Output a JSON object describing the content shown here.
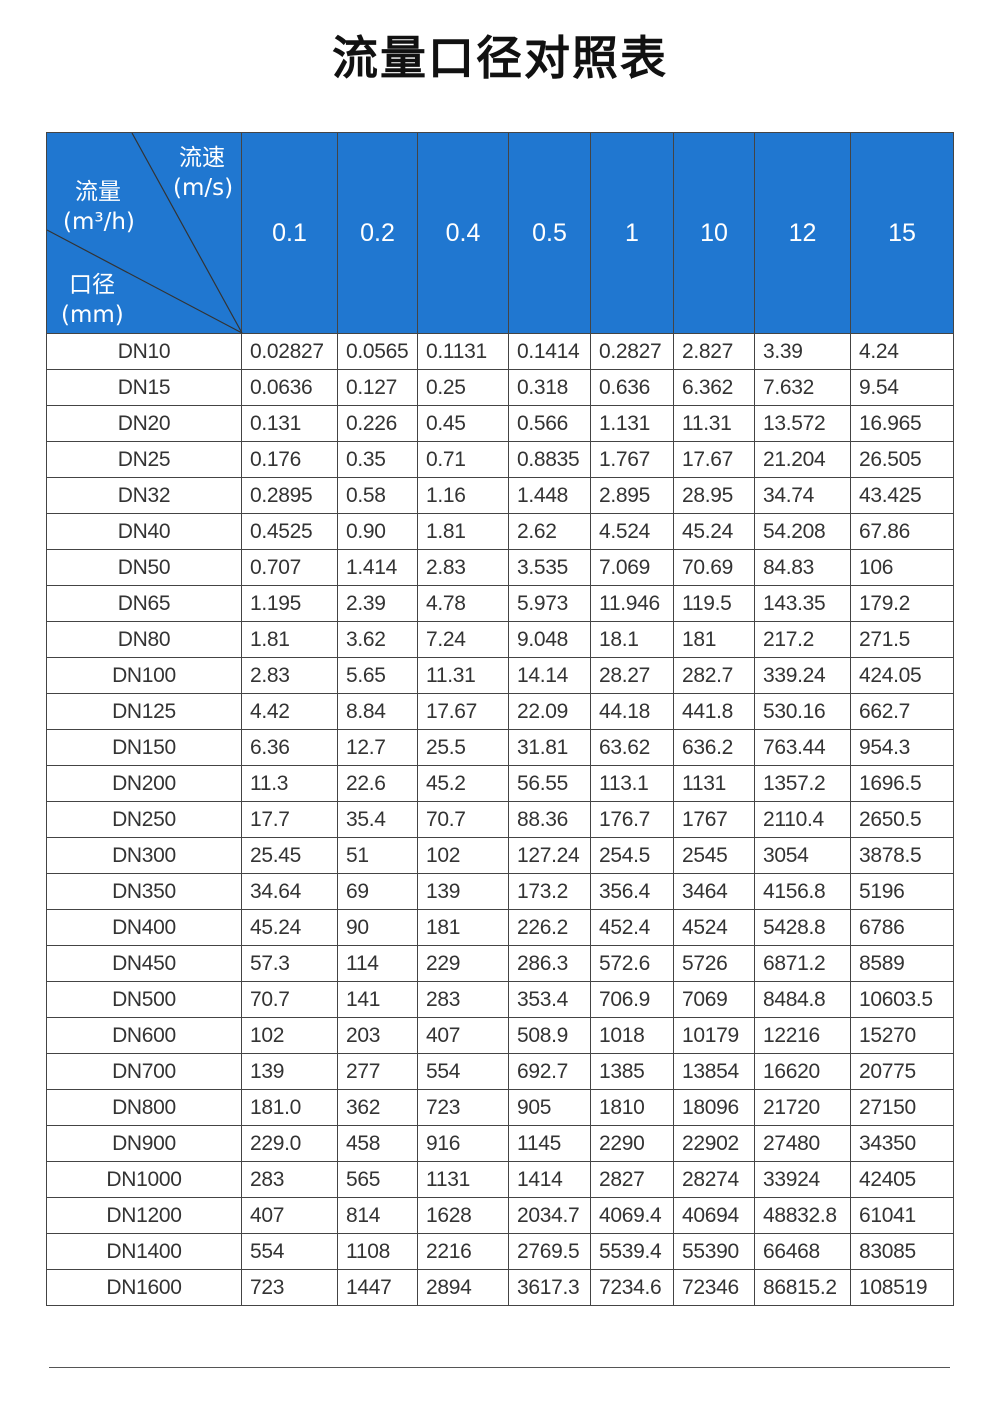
{
  "title": "流量口径对照表",
  "header": {
    "corner": {
      "speed_label": "流速",
      "speed_unit": "(m/s)",
      "flow_label": "流量",
      "flow_unit": "(m³/h)",
      "diameter_label": "口径",
      "diameter_unit": "(mm)"
    },
    "velocities": [
      "0.1",
      "0.2",
      "0.4",
      "0.5",
      "1",
      "10",
      "12",
      "15"
    ]
  },
  "colors": {
    "header_bg": "#2077d0",
    "header_text": "#ffffff",
    "border": "#444444"
  },
  "rows": [
    {
      "dn": "DN10",
      "values": [
        "0.02827",
        "0.0565",
        "0.1131",
        "0.1414",
        "0.2827",
        "2.827",
        "3.39",
        "4.24"
      ]
    },
    {
      "dn": "DN15",
      "values": [
        "0.0636",
        "0.127",
        "0.25",
        "0.318",
        "0.636",
        "6.362",
        "7.632",
        "9.54"
      ]
    },
    {
      "dn": "DN20",
      "values": [
        "0.131",
        "0.226",
        "0.45",
        "0.566",
        "1.131",
        "11.31",
        "13.572",
        "16.965"
      ]
    },
    {
      "dn": "DN25",
      "values": [
        "0.176",
        "0.35",
        "0.71",
        "0.8835",
        "1.767",
        "17.67",
        "21.204",
        "26.505"
      ]
    },
    {
      "dn": "DN32",
      "values": [
        "0.2895",
        "0.58",
        "1.16",
        "1.448",
        "2.895",
        "28.95",
        "34.74",
        "43.425"
      ]
    },
    {
      "dn": "DN40",
      "values": [
        "0.4525",
        "0.90",
        "1.81",
        "2.62",
        "4.524",
        "45.24",
        "54.208",
        "67.86"
      ]
    },
    {
      "dn": "DN50",
      "values": [
        "0.707",
        "1.414",
        "2.83",
        "3.535",
        "7.069",
        "70.69",
        "84.83",
        "106"
      ]
    },
    {
      "dn": "DN65",
      "values": [
        "1.195",
        "2.39",
        "4.78",
        "5.973",
        "11.946",
        "119.5",
        "143.35",
        "179.2"
      ]
    },
    {
      "dn": "DN80",
      "values": [
        "1.81",
        "3.62",
        "7.24",
        "9.048",
        "18.1",
        "181",
        "217.2",
        "271.5"
      ]
    },
    {
      "dn": "DN100",
      "values": [
        "2.83",
        "5.65",
        "11.31",
        "14.14",
        "28.27",
        "282.7",
        "339.24",
        "424.05"
      ]
    },
    {
      "dn": "DN125",
      "values": [
        "4.42",
        "8.84",
        "17.67",
        "22.09",
        "44.18",
        "441.8",
        "530.16",
        "662.7"
      ]
    },
    {
      "dn": "DN150",
      "values": [
        "6.36",
        "12.7",
        "25.5",
        "31.81",
        "63.62",
        "636.2",
        "763.44",
        "954.3"
      ]
    },
    {
      "dn": "DN200",
      "values": [
        "11.3",
        "22.6",
        "45.2",
        "56.55",
        "113.1",
        "1131",
        "1357.2",
        "1696.5"
      ]
    },
    {
      "dn": "DN250",
      "values": [
        "17.7",
        "35.4",
        "70.7",
        "88.36",
        "176.7",
        "1767",
        "2110.4",
        "2650.5"
      ]
    },
    {
      "dn": "DN300",
      "values": [
        "25.45",
        "51",
        "102",
        "127.24",
        "254.5",
        "2545",
        "3054",
        "3878.5"
      ]
    },
    {
      "dn": "DN350",
      "values": [
        "34.64",
        "69",
        "139",
        "173.2",
        "356.4",
        "3464",
        "4156.8",
        "5196"
      ]
    },
    {
      "dn": "DN400",
      "values": [
        "45.24",
        "90",
        "181",
        "226.2",
        "452.4",
        "4524",
        "5428.8",
        "6786"
      ]
    },
    {
      "dn": "DN450",
      "values": [
        "57.3",
        "114",
        "229",
        "286.3",
        "572.6",
        "5726",
        "6871.2",
        "8589"
      ]
    },
    {
      "dn": "DN500",
      "values": [
        "70.7",
        "141",
        "283",
        "353.4",
        "706.9",
        "7069",
        "8484.8",
        "10603.5"
      ]
    },
    {
      "dn": "DN600",
      "values": [
        "102",
        "203",
        "407",
        "508.9",
        "1018",
        "10179",
        "12216",
        "15270"
      ]
    },
    {
      "dn": "DN700",
      "values": [
        "139",
        "277",
        "554",
        "692.7",
        "1385",
        "13854",
        "16620",
        "20775"
      ]
    },
    {
      "dn": "DN800",
      "values": [
        "181.0",
        "362",
        "723",
        "905",
        "1810",
        "18096",
        "21720",
        "27150"
      ]
    },
    {
      "dn": "DN900",
      "values": [
        "229.0",
        "458",
        "916",
        "1145",
        "2290",
        "22902",
        "27480",
        "34350"
      ]
    },
    {
      "dn": "DN1000",
      "values": [
        "283",
        "565",
        "1131",
        "1414",
        "2827",
        "28274",
        "33924",
        "42405"
      ]
    },
    {
      "dn": "DN1200",
      "values": [
        "407",
        "814",
        "1628",
        "2034.7",
        "4069.4",
        "40694",
        "48832.8",
        "61041"
      ]
    },
    {
      "dn": "DN1400",
      "values": [
        "554",
        "1108",
        "2216",
        "2769.5",
        "5539.4",
        "55390",
        "66468",
        "83085"
      ]
    },
    {
      "dn": "DN1600",
      "values": [
        "723",
        "1447",
        "2894",
        "3617.3",
        "7234.6",
        "72346",
        "86815.2",
        "108519"
      ]
    }
  ]
}
